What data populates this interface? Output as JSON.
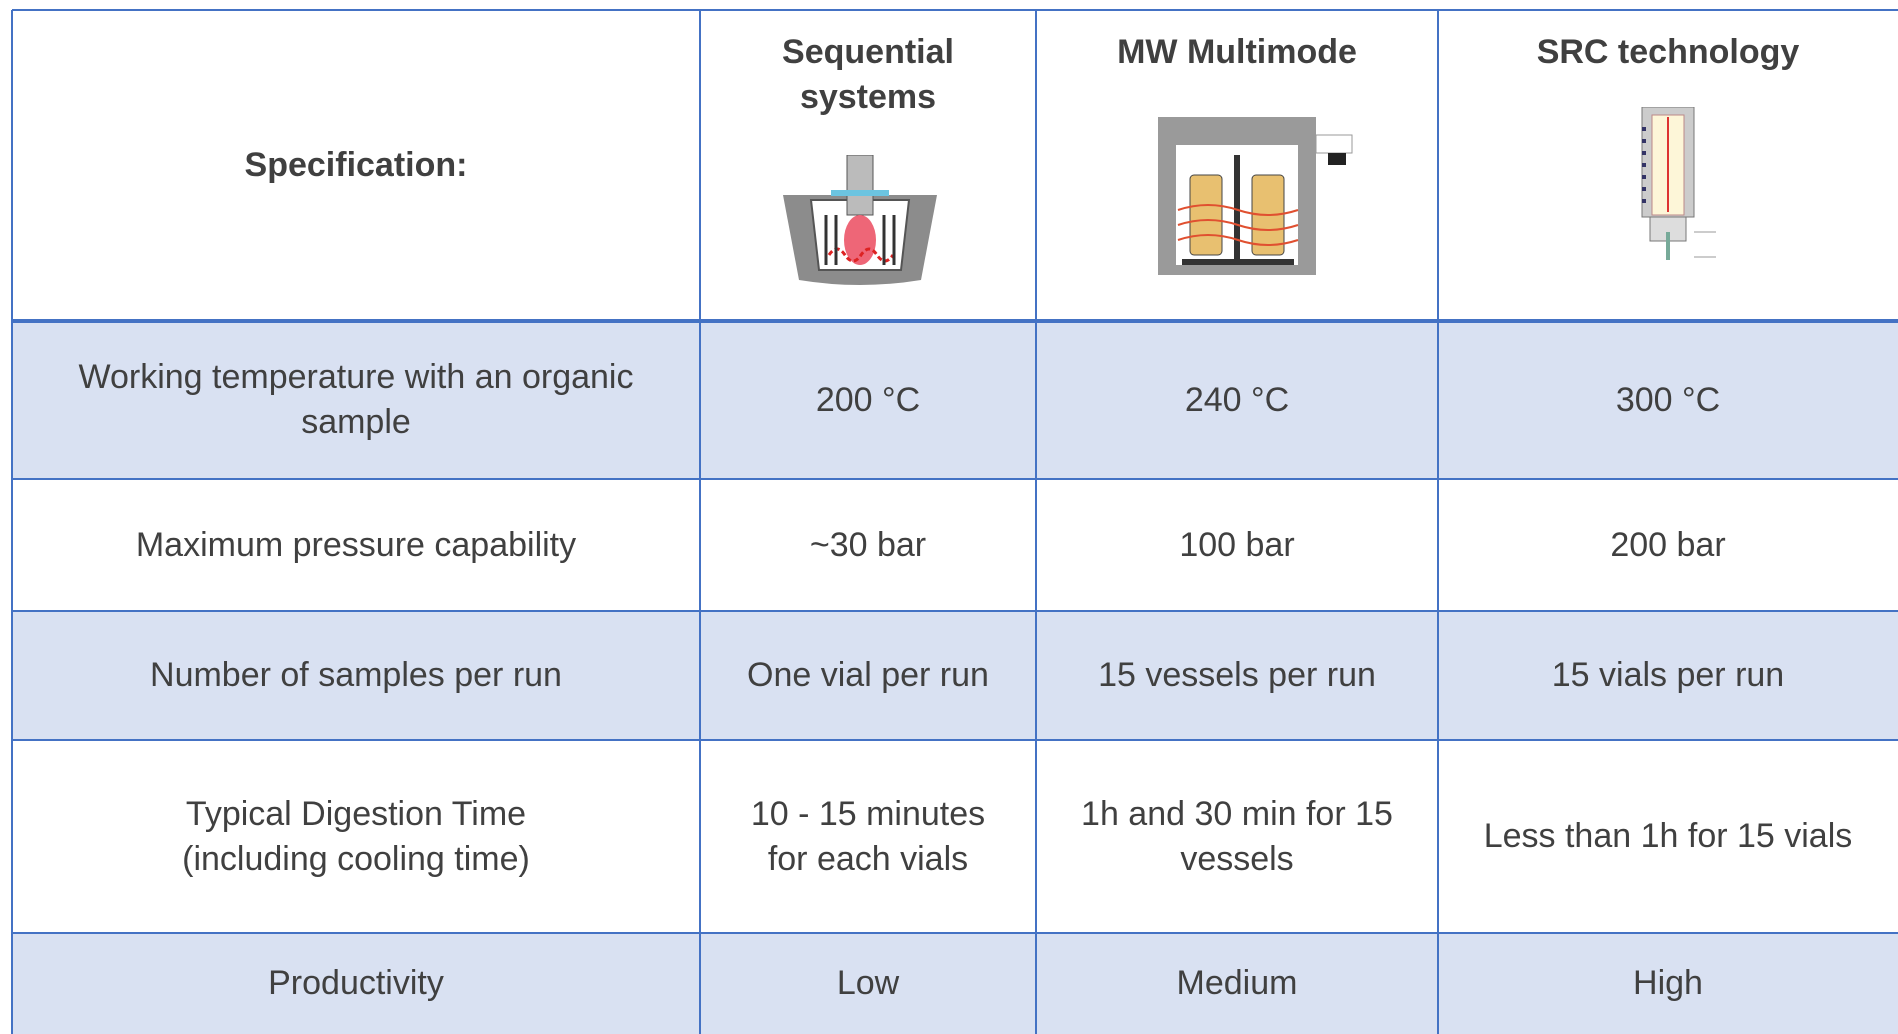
{
  "header": {
    "cells": [
      [
        "Specification:"
      ],
      [
        "Sequential",
        "systems"
      ],
      [
        "MW Multimode"
      ],
      [
        "SRC technology"
      ]
    ]
  },
  "rows": [
    [
      [
        "Working temperature with an organic",
        "sample"
      ],
      [
        "200 °C"
      ],
      [
        "240 °C"
      ],
      [
        "300 °C"
      ]
    ],
    [
      [
        "Maximum pressure capability"
      ],
      [
        "~30 bar"
      ],
      [
        "100 bar"
      ],
      [
        "200 bar"
      ]
    ],
    [
      [
        "Number of samples per run"
      ],
      [
        "One vial per run"
      ],
      [
        "15 vessels per run"
      ],
      [
        "15 vials per run"
      ]
    ],
    [
      [
        "Typical Digestion Time",
        "(including cooling time)"
      ],
      [
        "10 - 15 minutes",
        "for each vials"
      ],
      [
        "1h and 30 min for 15",
        "vessels"
      ],
      [
        "Less than 1h for 15 vials"
      ]
    ],
    [
      [
        "Productivity"
      ],
      [
        "Low"
      ],
      [
        "Medium"
      ],
      [
        "High"
      ]
    ]
  ]
}
